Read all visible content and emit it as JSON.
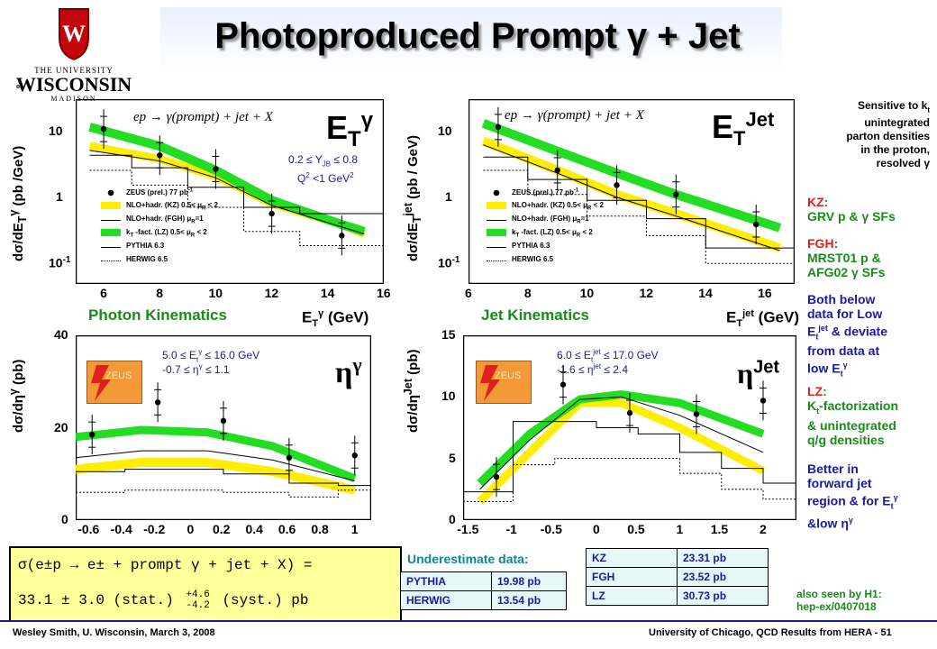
{
  "title": "Photoproduced Prompt γ + Jet",
  "logo": {
    "line1": "THE UNIVERSITY",
    "line2": "WISCONSIN",
    "line3": "MADISON",
    "prefix": "of",
    "shield_letter": "W"
  },
  "plots": {
    "et_gamma": {
      "label": "E",
      "sub": "T",
      "sup": "γ",
      "ylabel": "dσ/dE",
      "ylabel_sub": "T",
      "ylabel_sup": "γ",
      "ylabel_units": "(pb /GeV)",
      "reaction": "ep → γ(prompt) + jet + X",
      "cut1": "0.2 ≤ Y",
      "cut1_sub": "JB",
      "cut1_tail": " ≤ 0.8",
      "cut2": "Q",
      "cut2_sup": "2",
      "cut2_tail": " <1 GeV",
      "cut2_sup2": "2",
      "xticks": [
        "6",
        "8",
        "10",
        "12",
        "14",
        "16"
      ],
      "yticks": [
        "10",
        "1",
        "10"
      ],
      "yexp": "-1",
      "section": "Photon Kinematics",
      "xlabel": "E",
      "xlabel_sub": "T",
      "xlabel_sup": "γ",
      "xlabel_units": "(GeV)"
    },
    "et_jet": {
      "label": "E",
      "sub": "T",
      "sup": "Jet",
      "ylabel": "dσ/dE",
      "ylabel_sub": "T",
      "ylabel_sup": "jet",
      "ylabel_units": "(pb / GeV)",
      "reaction": "ep → γ(prompt) + jet + X",
      "xticks": [
        "6",
        "8",
        "10",
        "12",
        "14",
        "16"
      ],
      "yticks": [
        "10",
        "1",
        "10"
      ],
      "yexp": "-1",
      "section": "Jet Kinematics",
      "xlabel": "E",
      "xlabel_sub": "T",
      "xlabel_sup": "jet",
      "xlabel_units": "(GeV)"
    },
    "eta_gamma": {
      "label": "η",
      "sup": "γ",
      "ylabel": "dσ/dη",
      "ylabel_sup": "γ",
      "ylabel_units": "(pb)",
      "cut1": "5.0 ≤ E",
      "cut1_sub": "t",
      "cut1_sup": "γ",
      "cut1_tail": " ≤ 16.0 GeV",
      "cut2": "-0.7 ≤ η",
      "cut2_sup": "γ",
      "cut2_tail": " ≤ 1.1",
      "xticks": [
        "-0.6",
        "-0.4",
        "-0.2",
        "0",
        "0.2",
        "0.4",
        "0.6",
        "0.8",
        "1"
      ],
      "yticks": [
        "40",
        "20",
        "0"
      ],
      "zeus": "ZEUS"
    },
    "eta_jet": {
      "label": "η",
      "sup": "Jet",
      "ylabel": "dσ/dη",
      "ylabel_sup": "Jet",
      "ylabel_units": "(pb)",
      "cut1": "6.0 ≤ E",
      "cut1_sub": "t",
      "cut1_sup": "jet",
      "cut1_tail": " ≤ 17.0 GeV",
      "cut2": "-1.6 ≤ η",
      "cut2_sup": "jet",
      "cut2_tail": " ≤ 2.4",
      "xticks": [
        "-1.5",
        "-1",
        "-0.5",
        "0",
        "0.5",
        "1",
        "1.5",
        "2"
      ],
      "yticks": [
        "15",
        "10",
        "5",
        "0"
      ],
      "zeus": "ZEUS"
    }
  },
  "legend": [
    {
      "label": "ZEUS (prel.) 77 pb",
      "sup": "-1",
      "style": "point"
    },
    {
      "label": "NLO+hadr. (KZ) 0.5< μ",
      "sub": "R",
      "tail": " < 2",
      "style": "yellow"
    },
    {
      "label": "NLO+hadr. (FGH) μ",
      "sub": "R",
      "tail": "=1",
      "style": "line"
    },
    {
      "label": "k",
      "sub": "T",
      "tail": " -fact. (LZ) 0.5< μ",
      "sub2": "R",
      "tail2": " < 2",
      "style": "green"
    },
    {
      "label": "PYTHIA 6.3",
      "style": "hist"
    },
    {
      "label": "HERWIG 6.5",
      "style": "dotted"
    }
  ],
  "side_notes": {
    "sensitive": [
      "Sensitive to k",
      "t",
      "unintegrated",
      "parton densities",
      "in the proton,",
      "resolved γ"
    ],
    "kz_label": "KZ",
    "kz_text": "GRV p & γ SFs",
    "fgh_label": "FGH",
    "fgh_text1": "MRST01 p &",
    "fgh_text2": "AFG02 γ SFs",
    "both1": "Both below",
    "both2": "data for Low",
    "both3_a": "E",
    "both3_sub": "t",
    "both3_sup": "jet",
    "both3_b": " & deviate",
    "both4": "from data at",
    "both5_a": "low E",
    "both5_sub": "t",
    "both5_sup": "γ",
    "lz_label": "LZ",
    "lz1_a": "K",
    "lz1_sub": "t",
    "lz1_b": "-factorization",
    "lz2": "& unintegrated",
    "lz3": "q/g densities",
    "better1": "Better in",
    "better2": "forward jet",
    "better3_a": "region & for E",
    "better3_sub": "t",
    "better3_sup": "γ",
    "better4_a": "&low η",
    "better4_sup": "γ"
  },
  "formula": {
    "line1": "σ(e±p → e± + prompt γ + jet + X) =",
    "line2": "33.1 ± 3.0 (stat.)",
    "up": "+4.6",
    "down": "-4.2",
    "line2_tail": "(syst.) pb"
  },
  "underestimate_label": "Underestimate data:",
  "table_left": [
    [
      "PYTHIA",
      "19.98 pb"
    ],
    [
      "HERWIG",
      "13.54 pb"
    ]
  ],
  "table_right": [
    [
      "KZ",
      "23.31 pb"
    ],
    [
      "FGH",
      "23.52 pb"
    ],
    [
      "LZ",
      "30.73 pb"
    ]
  ],
  "h1_note": {
    "line1": "also seen by H1:",
    "line2": "hep-ex/0407018"
  },
  "footer_left": "Wesley Smith, U. Wisconsin, March 3, 2008",
  "footer_right": "University of Chicago, QCD Results from HERA - 51",
  "colors": {
    "green": "#22dd22",
    "yellow": "#ffee00",
    "title_blue": "#1a1aa0",
    "red": "#e0201c",
    "green_text": "#1a8a1a",
    "blue_text": "#1a1aa0",
    "zeus_orange": "#f29a3a",
    "underestimate": "#0a8a8a"
  },
  "chart_data": [
    {
      "type": "scatter",
      "title": "",
      "xlabel": "E_T^γ (GeV)",
      "ylabel": "dσ/dE_T^γ (pb /GeV)",
      "xlim": [
        5,
        16
      ],
      "ylim": [
        0.1,
        20
      ],
      "log_y": true,
      "series": [
        {
          "name": "ZEUS (prel.) 77 pb-1",
          "x": [
            6,
            8,
            10,
            12,
            14.5
          ],
          "y": [
            8.5,
            4.0,
            2.7,
            0.75,
            0.4
          ]
        }
      ]
    },
    {
      "type": "scatter",
      "title": "",
      "xlabel": "E_T^jet (GeV)",
      "ylabel": "dσ/dE_T^jet (pb / GeV)",
      "xlim": [
        6,
        17
      ],
      "ylim": [
        0.1,
        20
      ],
      "log_y": true,
      "series": [
        {
          "name": "ZEUS (prel.) 77 pb-1",
          "x": [
            7,
            9,
            11,
            13,
            15.7
          ],
          "y": [
            9.0,
            2.6,
            1.7,
            1.3,
            0.55
          ]
        }
      ]
    },
    {
      "type": "scatter",
      "title": "",
      "xlabel": "",
      "ylabel": "dσ/dη^γ (pb)",
      "xlim": [
        -0.7,
        1.1
      ],
      "ylim": [
        0,
        40
      ],
      "series": [
        {
          "name": "ZEUS (prel.) 77 pb-1",
          "x": [
            -0.6,
            -0.2,
            0.2,
            0.6,
            1.0
          ],
          "y": [
            18.5,
            25.5,
            21.5,
            13.5,
            14.0
          ]
        }
      ]
    },
    {
      "type": "scatter",
      "title": "",
      "xlabel": "",
      "ylabel": "dσ/dη^Jet (pb)",
      "xlim": [
        -1.6,
        2.4
      ],
      "ylim": [
        0,
        15
      ],
      "series": [
        {
          "name": "ZEUS (prel.) 77 pb-1",
          "x": [
            -1.2,
            -0.4,
            0.4,
            1.2,
            2.0
          ],
          "y": [
            3.5,
            11.0,
            8.7,
            8.6,
            9.7
          ]
        }
      ]
    }
  ]
}
